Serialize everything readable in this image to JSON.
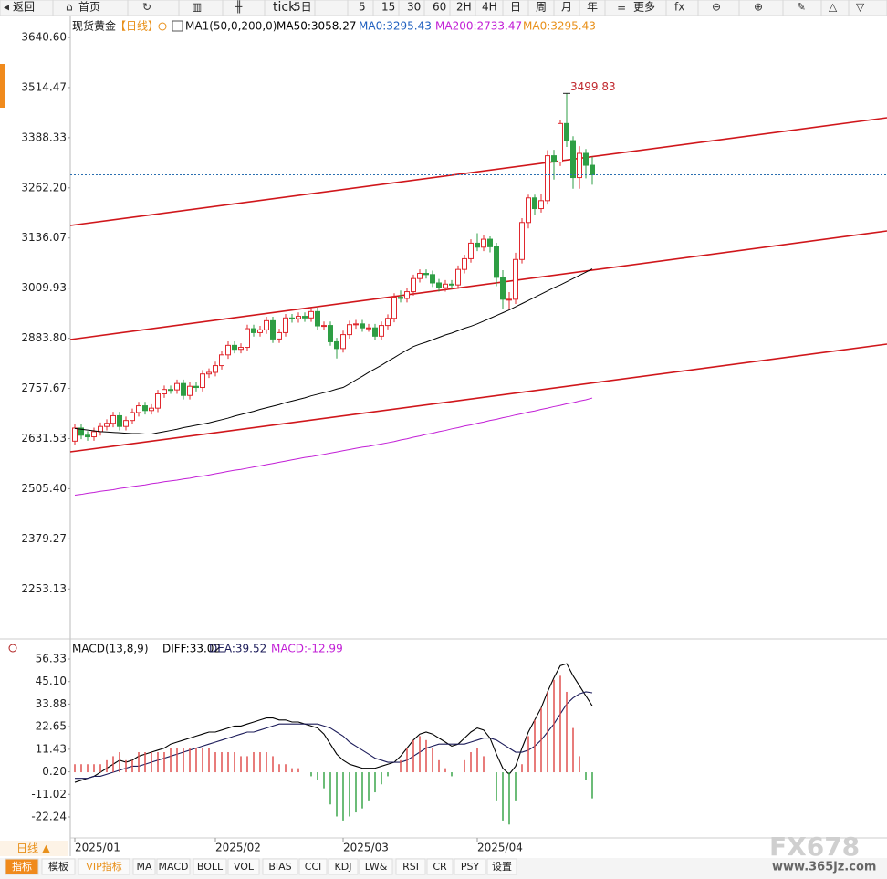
{
  "toolbar": [
    "返回",
    "首页",
    "tick",
    "5日",
    "5",
    "15",
    "30",
    "60",
    "2H",
    "4H",
    "日",
    "周",
    "月",
    "年",
    "更多"
  ],
  "header": {
    "instrument": "现货黄金",
    "period": "【日线】",
    "indicator": "MA1(50,0,200,0)",
    "extras": [
      {
        "text": "MA0:3295.43",
        "color": "#1f5fbf"
      },
      {
        "text": "MA0:3295.43",
        "color": "#e8901a"
      }
    ]
  },
  "chart_data": [
    {
      "type": "candlestick",
      "categories": [
        "2025/01",
        null,
        null,
        null,
        null,
        null,
        null,
        null,
        null,
        null,
        null,
        null,
        null,
        null,
        null,
        null,
        null,
        null,
        null,
        null,
        null,
        null,
        "2025/02",
        null,
        null,
        null,
        null,
        null,
        null,
        null,
        null,
        null,
        null,
        null,
        null,
        null,
        null,
        null,
        null,
        null,
        null,
        null,
        "2025/03",
        null,
        null,
        null,
        null,
        null,
        null,
        null,
        null,
        null,
        null,
        null,
        null,
        null,
        null,
        null,
        null,
        null,
        null,
        null,
        null,
        "2025/04",
        null,
        null,
        null,
        null,
        null,
        null,
        null,
        null,
        null,
        null,
        null,
        null,
        null,
        null,
        null,
        null,
        null,
        null
      ],
      "open": [
        2625,
        2658,
        2640,
        2636,
        2649,
        2662,
        2670,
        2689,
        2662,
        2677,
        2697,
        2714,
        2702,
        2708,
        2744,
        2755,
        2754,
        2770,
        2740,
        2763,
        2760,
        2794,
        2798,
        2815,
        2842,
        2866,
        2856,
        2861,
        2908,
        2898,
        2905,
        2928,
        2882,
        2898,
        2935,
        2933,
        2939,
        2935,
        2951,
        2915,
        2916,
        2875,
        2858,
        2893,
        2918,
        2920,
        2910,
        2910,
        2889,
        2916,
        2934,
        2987,
        2984,
        3001,
        3034,
        3047,
        3044,
        3023,
        3011,
        3020,
        3018,
        3057,
        3084,
        3123,
        3113,
        3133,
        3114,
        3037,
        2982,
        2982,
        3082,
        3175,
        3237,
        3210,
        3230,
        3343,
        3327,
        3424,
        3381,
        3288,
        3349,
        3319
      ],
      "high": [
        2668,
        2668,
        2650,
        2659,
        2672,
        2680,
        2699,
        2699,
        2687,
        2707,
        2724,
        2724,
        2718,
        2754,
        2765,
        2765,
        2780,
        2780,
        2773,
        2773,
        2804,
        2808,
        2825,
        2852,
        2876,
        2876,
        2871,
        2918,
        2918,
        2915,
        2938,
        2938,
        2908,
        2945,
        2945,
        2949,
        2949,
        2961,
        2961,
        2926,
        2926,
        2885,
        2903,
        2928,
        2930,
        2930,
        2920,
        2920,
        2926,
        2944,
        2997,
        3004,
        3011,
        3044,
        3057,
        3057,
        3054,
        3033,
        3030,
        3030,
        3067,
        3094,
        3133,
        3148,
        3143,
        3140,
        3124,
        3055,
        3000,
        3099,
        3186,
        3245,
        3245,
        3246,
        3357,
        3358,
        3434,
        3499.83,
        3392,
        3367,
        3360,
        3340
      ],
      "low": [
        2615,
        2630,
        2626,
        2626,
        2639,
        2652,
        2660,
        2652,
        2652,
        2667,
        2687,
        2692,
        2692,
        2698,
        2734,
        2744,
        2744,
        2730,
        2730,
        2750,
        2750,
        2784,
        2788,
        2805,
        2832,
        2846,
        2846,
        2851,
        2888,
        2888,
        2895,
        2872,
        2872,
        2888,
        2923,
        2923,
        2925,
        2925,
        2905,
        2905,
        2865,
        2833,
        2848,
        2883,
        2908,
        2900,
        2900,
        2879,
        2879,
        2906,
        2924,
        2974,
        2974,
        2991,
        3024,
        3034,
        3013,
        3001,
        3001,
        3008,
        3008,
        3047,
        3074,
        3103,
        3103,
        3100,
        3015,
        2957,
        2956,
        2970,
        3072,
        3160,
        3194,
        3200,
        3220,
        3283,
        3317,
        3365,
        3260,
        3260,
        3286,
        3270
      ],
      "close": [
        2658,
        2640,
        2636,
        2649,
        2662,
        2670,
        2689,
        2662,
        2677,
        2697,
        2714,
        2702,
        2708,
        2744,
        2755,
        2754,
        2770,
        2740,
        2763,
        2760,
        2794,
        2798,
        2815,
        2842,
        2866,
        2856,
        2861,
        2908,
        2898,
        2905,
        2928,
        2882,
        2898,
        2935,
        2933,
        2939,
        2935,
        2951,
        2915,
        2916,
        2875,
        2858,
        2893,
        2918,
        2920,
        2910,
        2910,
        2889,
        2916,
        2934,
        2987,
        2984,
        3001,
        3034,
        3047,
        3044,
        3023,
        3011,
        3020,
        3018,
        3057,
        3084,
        3123,
        3113,
        3133,
        3114,
        3037,
        2982,
        2982,
        3082,
        3175,
        3237,
        3210,
        3230,
        3343,
        3327,
        3424,
        3381,
        3288,
        3349,
        3319,
        3295
      ],
      "up_color": "#e0282e",
      "down_color": "#2e9e44",
      "series": [
        {
          "name": "MA50:3058.27",
          "color": "#000000",
          "values": [
            2657,
            2655,
            2653,
            2651,
            2649,
            2648,
            2647,
            2646,
            2645,
            2644,
            2644,
            2643,
            2643,
            2646,
            2649,
            2652,
            2655,
            2659,
            2662,
            2665,
            2668,
            2671,
            2675,
            2679,
            2683,
            2688,
            2692,
            2696,
            2700,
            2705,
            2709,
            2713,
            2717,
            2722,
            2726,
            2730,
            2734,
            2739,
            2743,
            2747,
            2751,
            2756,
            2760,
            2769,
            2779,
            2788,
            2798,
            2807,
            2816,
            2826,
            2835,
            2845,
            2854,
            2863,
            2869,
            2874,
            2880,
            2886,
            2892,
            2897,
            2903,
            2909,
            2914,
            2920,
            2927,
            2934,
            2941,
            2948,
            2955,
            2963,
            2971,
            2979,
            2987,
            2995,
            3003,
            3011,
            3018,
            3026,
            3034,
            3042,
            3050,
            3058.27
          ]
        },
        {
          "name": "MA200:2733.47",
          "color": "#c21fd6",
          "values": [
            2489,
            2491,
            2494,
            2496,
            2499,
            2501,
            2503,
            2506,
            2508,
            2511,
            2513,
            2515,
            2518,
            2520,
            2523,
            2525,
            2527,
            2530,
            2532,
            2535,
            2537,
            2540,
            2543,
            2546,
            2549,
            2552,
            2554,
            2557,
            2560,
            2563,
            2566,
            2569,
            2572,
            2575,
            2578,
            2581,
            2584,
            2586,
            2589,
            2592,
            2595,
            2598,
            2601,
            2604,
            2607,
            2610,
            2612,
            2615,
            2618,
            2621,
            2624,
            2628,
            2631,
            2635,
            2638,
            2642,
            2645,
            2649,
            2652,
            2656,
            2659,
            2663,
            2666,
            2670,
            2673,
            2677,
            2680,
            2684,
            2687,
            2691,
            2694,
            2698,
            2701,
            2705,
            2708,
            2712,
            2715,
            2719,
            2722,
            2726,
            2729,
            2733.47
          ]
        }
      ],
      "ylim": [
        2127.5,
        3688.8
      ],
      "yticks": [
        {
          "value": 3640.6,
          "label": "3640.60"
        },
        3514.47,
        3388.33,
        {
          "value": 3262.2,
          "label": "3262.20"
        },
        3136.07,
        3009.93,
        {
          "value": 2883.8,
          "label": "2883.80"
        },
        2757.67,
        2631.53,
        {
          "value": 2505.4,
          "label": "2505.40"
        },
        2379.27,
        2253.13
      ]
    },
    {
      "type": "macd",
      "title": "MACD(13,8,9)",
      "series": [
        {
          "name": "DIFF:33.02",
          "color": "#000000",
          "values": [
            -5,
            -4,
            -3,
            -2,
            0,
            2,
            4,
            6,
            5,
            6,
            8,
            9,
            10,
            11,
            12,
            14,
            15,
            16,
            17,
            18,
            19,
            20,
            20,
            21,
            22,
            23,
            23,
            24,
            25,
            26,
            27,
            27,
            26,
            26,
            25,
            25,
            24,
            23,
            22,
            19,
            14,
            9,
            6,
            4,
            3,
            2,
            2,
            2,
            3,
            4,
            5,
            8,
            12,
            16,
            19,
            20,
            19,
            17,
            15,
            13,
            14,
            17,
            20,
            22,
            21,
            17,
            9,
            2,
            -1,
            3,
            12,
            20,
            26,
            32,
            40,
            47,
            53,
            54,
            48,
            43,
            38,
            33.02
          ]
        },
        {
          "name": "DEA:39.52",
          "color": "#1c1c5a",
          "values": [
            -3,
            -3,
            -3,
            -2,
            -2,
            -1,
            0,
            1,
            2,
            3,
            3,
            4,
            5,
            6,
            7,
            8,
            9,
            10,
            11,
            12,
            13,
            14,
            15,
            16,
            17,
            18,
            19,
            20,
            20,
            21,
            22,
            23,
            24,
            24,
            24,
            24,
            24,
            24,
            24,
            23,
            22,
            20,
            18,
            15,
            13,
            11,
            9,
            7,
            6,
            5,
            5,
            5,
            6,
            8,
            10,
            12,
            13,
            14,
            14,
            14,
            14,
            14,
            15,
            16,
            17,
            17,
            16,
            14,
            12,
            10,
            10,
            11,
            13,
            16,
            20,
            24,
            29,
            34,
            37,
            39,
            40,
            39.52
          ]
        },
        {
          "name": "MACD:-12.99",
          "color": "#c21fd6",
          "up_color": "#e0504f",
          "down_color": "#3aa64a",
          "values": [
            4,
            4,
            4,
            4,
            4,
            6,
            8,
            10,
            6,
            6,
            10,
            10,
            10,
            10,
            10,
            12,
            12,
            12,
            12,
            12,
            12,
            12,
            10,
            10,
            10,
            10,
            8,
            8,
            10,
            10,
            10,
            8,
            4,
            4,
            2,
            2,
            0,
            -2,
            -4,
            -8,
            -16,
            -22,
            -24,
            -22,
            -20,
            -18,
            -14,
            -10,
            -6,
            -2,
            0,
            6,
            12,
            16,
            18,
            16,
            12,
            6,
            2,
            -2,
            0,
            6,
            10,
            12,
            8,
            0,
            -14,
            -24,
            -26,
            -14,
            4,
            18,
            26,
            32,
            40,
            46,
            48,
            40,
            22,
            8,
            -4,
            -12.99
          ]
        }
      ],
      "ylim": [
        -31.32,
        59.51
      ],
      "yticks": [
        56.33,
        {
          "value": 45.1,
          "label": "45.10"
        },
        33.88,
        22.65,
        11.43,
        {
          "value": 0.2,
          "label": "0.20"
        },
        -11.02,
        -22.24
      ]
    }
  ],
  "period_selector": "日线 ▲",
  "tabs": [
    "指标",
    "模板",
    "VIP指标",
    "MA",
    "MACD",
    "BOLL",
    "VOL",
    "BIAS",
    "CCI",
    "KDJ",
    "LW&",
    "RSI",
    "CR",
    "PSY",
    "设置"
  ],
  "watermark": {
    "logo": "FX678",
    "url": "www.365jz.com"
  }
}
